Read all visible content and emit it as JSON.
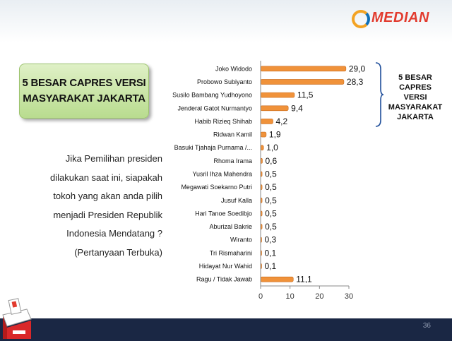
{
  "logo": {
    "text": "MEDIAN"
  },
  "title_box": {
    "text": "5 BESAR CAPRES VERSI\nMASYARAKAT JAKARTA"
  },
  "question": {
    "text": "Jika Pemilihan presiden\ndilakukan saat ini, siapakah\ntokoh yang akan anda pilih\nmenjadi Presiden Republik\nIndonesia Mendatang ?\n(Pertanyaan Terbuka)"
  },
  "side_note": {
    "text": "5 BESAR\nCAPRES VERSI\nMASYARAKAT\nJAKARTA"
  },
  "page_number": "36",
  "colors": {
    "bar": "#f0923a",
    "bar_edge": "#c76a1c",
    "footer": "#1a2744",
    "title_box": "#c9e5a4",
    "brace": "#1f4e9a"
  },
  "chart_data": {
    "type": "bar",
    "orientation": "horizontal",
    "categories": [
      "Joko Widodo",
      "Probowo Subiyanto",
      "Susilo Bambang Yudhoyono",
      "Jenderal Gatot Nurmantyo",
      "Habib Rizieq Shihab",
      "Ridwan Kamil",
      "Basuki Tjahaja Purnama /...",
      "Rhoma Irama",
      "Yusril Ihza Mahendra",
      "Megawati Soekarno Putri",
      "Jusuf Kalla",
      "Hari Tanoe Soedibjo",
      "Aburizal Bakrie",
      "Wiranto",
      "Tri Rismaharini",
      "Hidayat Nur Wahid",
      "Ragu / Tidak Jawab"
    ],
    "values": [
      29.0,
      28.3,
      11.5,
      9.4,
      4.2,
      1.9,
      1.0,
      0.6,
      0.5,
      0.5,
      0.5,
      0.5,
      0.5,
      0.3,
      0.1,
      0.1,
      11.1
    ],
    "value_labels": [
      "29,0",
      "28,3",
      "11,5",
      "9,4",
      "4,2",
      "1,9",
      "1,0",
      "0,6",
      "0,5",
      "0,5",
      "0,5",
      "0,5",
      "0,5",
      "0,3",
      "0,1",
      "0,1",
      "11,1"
    ],
    "xlim": [
      0,
      30
    ],
    "xticks": [
      0,
      10,
      20,
      30
    ],
    "grid": false
  }
}
